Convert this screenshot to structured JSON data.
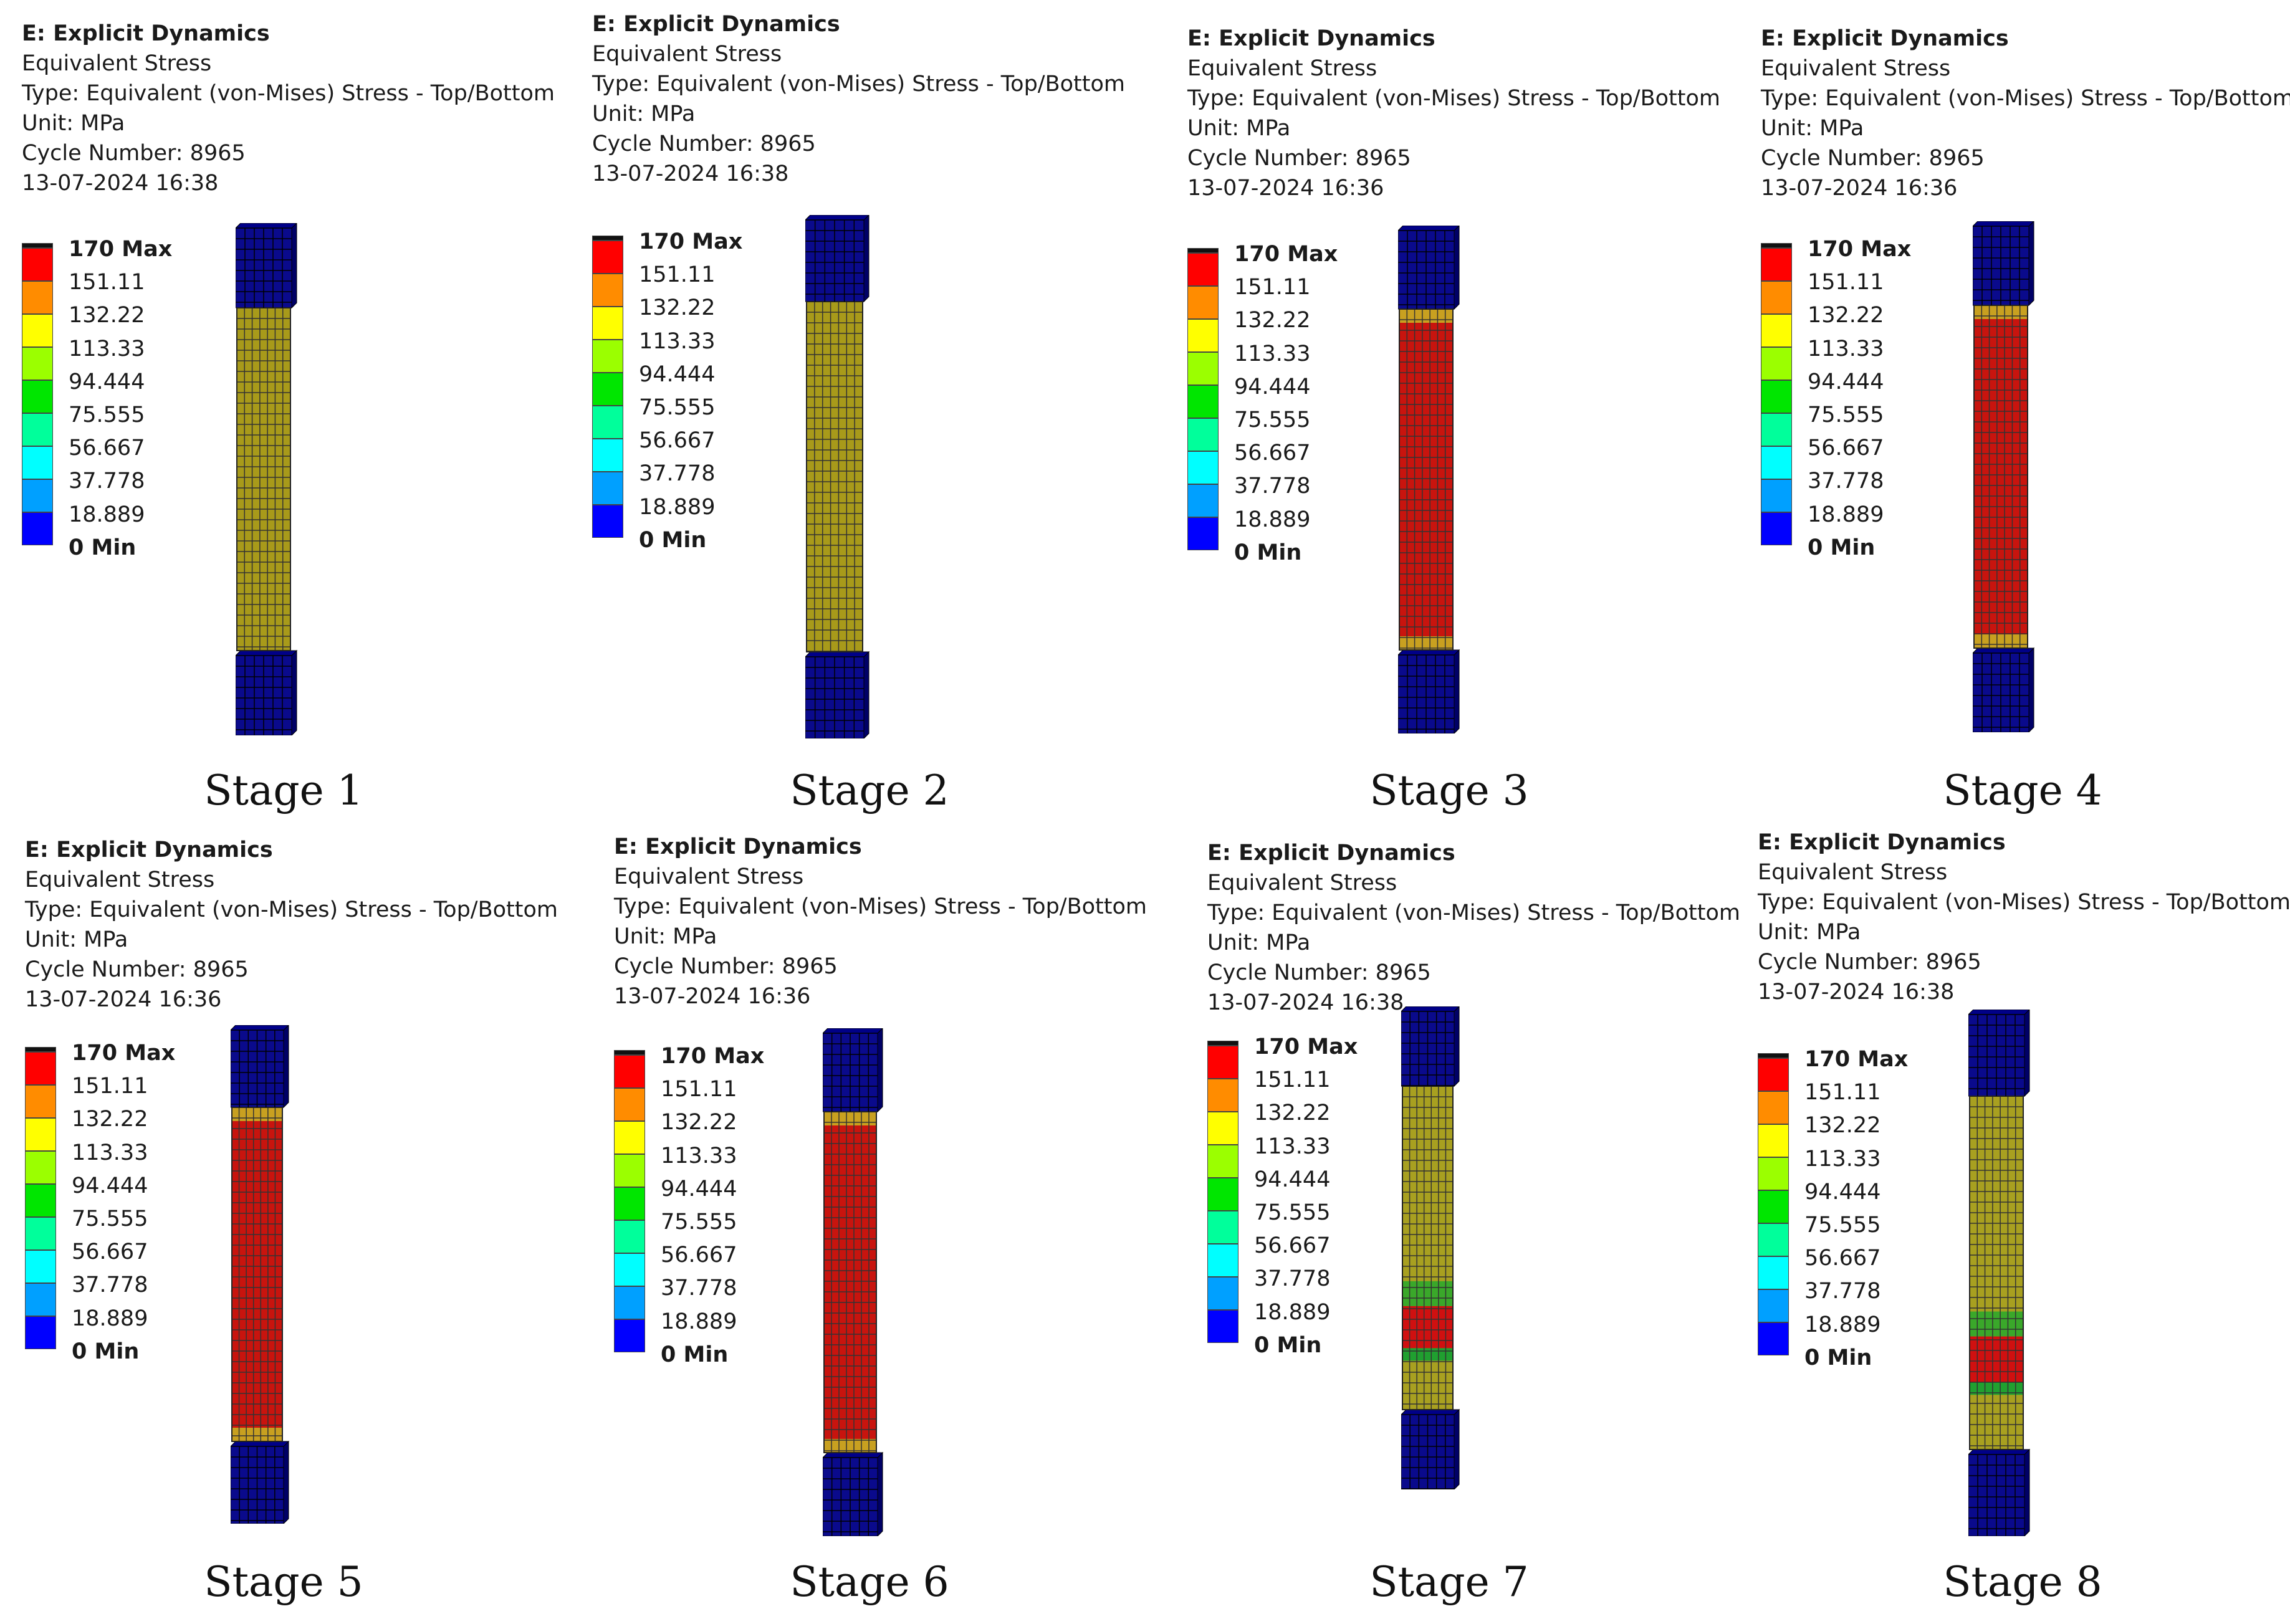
{
  "legend_labels": [
    "170 Max",
    "151.11",
    "132.22",
    "113.33",
    "94.444",
    "75.555",
    "56.667",
    "37.778",
    "18.889",
    "0 Min"
  ],
  "legend_colors": [
    "#ff0000",
    "#ff8c00",
    "#ffff00",
    "#9bff00",
    "#00e600",
    "#00ff9b",
    "#00ffff",
    "#00a0ff",
    "#0000ff"
  ],
  "panels": [
    {
      "title": "E: Explicit Dynamics",
      "subtitle": "Equivalent Stress",
      "type": "Type: Equivalent (von-Mises) Stress - Top/Bottom",
      "unit": "Unit: MPa",
      "cycle": "Cycle Number: 8965",
      "date": "13-07-2024 16:38",
      "stage": "Stage 1",
      "pattern": "uniform"
    },
    {
      "title": "E: Explicit Dynamics",
      "subtitle": "Equivalent Stress",
      "type": "Type: Equivalent (von-Mises) Stress - Top/Bottom",
      "unit": "Unit: MPa",
      "cycle": "Cycle Number: 8965",
      "date": "13-07-2024 16:38",
      "stage": "Stage 2",
      "pattern": "uniform"
    },
    {
      "title": "E: Explicit Dynamics",
      "subtitle": "Equivalent Stress",
      "type": "Type: Equivalent (von-Mises) Stress - Top/Bottom",
      "unit": "Unit: MPa",
      "cycle": "Cycle Number: 8965",
      "date": "13-07-2024 16:36",
      "stage": "Stage 3",
      "pattern": "red"
    },
    {
      "title": "E: Explicit Dynamics",
      "subtitle": "Equivalent Stress",
      "type": "Type: Equivalent (von-Mises) Stress - Top/Bottom",
      "unit": "Unit: MPa",
      "cycle": "Cycle Number: 8965",
      "date": "13-07-2024 16:36",
      "stage": "Stage 4",
      "pattern": "red"
    },
    {
      "title": "E: Explicit Dynamics",
      "subtitle": "Equivalent Stress",
      "type": "Type: Equivalent (von-Mises) Stress - Top/Bottom",
      "unit": "Unit: MPa",
      "cycle": "Cycle Number: 8965",
      "date": "13-07-2024 16:36",
      "stage": "Stage 5",
      "pattern": "red"
    },
    {
      "title": "E: Explicit Dynamics",
      "subtitle": "Equivalent Stress",
      "type": "Type: Equivalent (von-Mises) Stress - Top/Bottom",
      "unit": "Unit: MPa",
      "cycle": "Cycle Number: 8965",
      "date": "13-07-2024 16:36",
      "stage": "Stage 6",
      "pattern": "red"
    },
    {
      "title": "E: Explicit Dynamics",
      "subtitle": "Equivalent Stress",
      "type": "Type: Equivalent (von-Mises) Stress - Top/Bottom",
      "unit": "Unit: MPa",
      "cycle": "Cycle Number: 8965",
      "date": "13-07-2024 16:38",
      "stage": "Stage 7",
      "pattern": "neck"
    },
    {
      "title": "E: Explicit Dynamics",
      "subtitle": "Equivalent Stress",
      "type": "Type: Equivalent (von-Mises) Stress - Top/Bottom",
      "unit": "Unit: MPa",
      "cycle": "Cycle Number: 8965",
      "date": "13-07-2024 16:38",
      "stage": "Stage 8",
      "pattern": "neck"
    }
  ]
}
